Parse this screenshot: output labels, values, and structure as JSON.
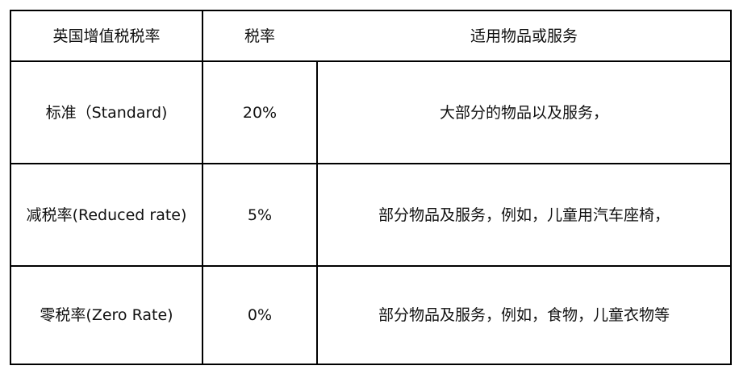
{
  "headers": [
    "英国增值税税率",
    "税率",
    "适用物品或服务"
  ],
  "rows": [
    {
      "category": "标准（Standard)",
      "rate": "20%",
      "applies_to": "大部分的物品以及服务，"
    },
    {
      "category": "减税率(Reduced rate)",
      "rate": "5%",
      "applies_to": "部分物品及服务，例如，儿童用汽车座椅，"
    },
    {
      "category": "零税率(Zero Rate)",
      "rate": "0%",
      "applies_to": "部分物品及服务，例如，食物，儿童衣物等"
    }
  ]
}
